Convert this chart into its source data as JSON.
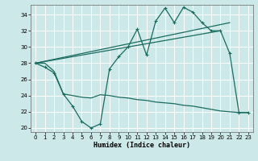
{
  "xlabel": "Humidex (Indice chaleur)",
  "bg_color": "#cce8e8",
  "grid_color": "#ffffff",
  "line_color": "#1a6b60",
  "xlim": [
    -0.5,
    23.5
  ],
  "ylim": [
    19.5,
    35.2
  ],
  "yticks": [
    20,
    22,
    24,
    26,
    28,
    30,
    32,
    34
  ],
  "xticks": [
    0,
    1,
    2,
    3,
    4,
    5,
    6,
    7,
    8,
    9,
    10,
    11,
    12,
    13,
    14,
    15,
    16,
    17,
    18,
    19,
    20,
    21,
    22,
    23
  ],
  "series1_x": [
    0,
    1,
    2,
    3,
    4,
    5,
    6,
    7,
    8,
    9,
    10,
    11,
    12,
    13,
    14,
    15,
    16,
    17,
    18,
    19,
    20,
    21,
    22,
    23
  ],
  "series1_y": [
    28.0,
    27.5,
    26.8,
    24.2,
    22.7,
    20.8,
    20.0,
    20.5,
    27.3,
    28.8,
    30.0,
    32.2,
    29.0,
    33.2,
    34.8,
    33.0,
    34.9,
    34.3,
    33.0,
    32.0,
    32.0,
    29.2,
    21.9,
    21.9
  ],
  "series2_x": [
    0,
    21
  ],
  "series2_y": [
    28.0,
    33.0
  ],
  "series3_x": [
    0,
    20
  ],
  "series3_y": [
    28.0,
    32.0
  ],
  "series4_x": [
    0,
    1,
    2,
    3,
    4,
    5,
    6,
    7,
    8,
    9,
    10,
    11,
    12,
    13,
    14,
    15,
    16,
    17,
    18,
    19,
    20,
    21,
    22,
    23
  ],
  "series4_y": [
    28.0,
    28.0,
    27.0,
    24.2,
    24.0,
    23.8,
    23.7,
    24.1,
    24.0,
    23.8,
    23.7,
    23.5,
    23.4,
    23.2,
    23.1,
    23.0,
    22.8,
    22.7,
    22.5,
    22.3,
    22.1,
    22.0,
    21.9,
    21.9
  ]
}
